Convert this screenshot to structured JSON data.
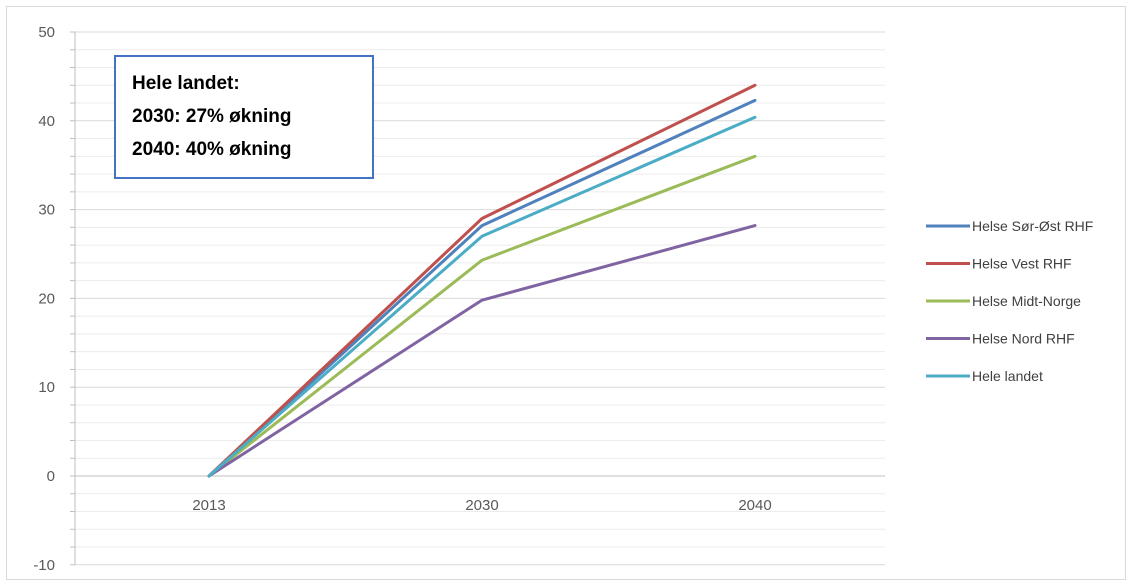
{
  "chart_data": {
    "type": "line",
    "categories": [
      "2013",
      "2030",
      "2040"
    ],
    "series": [
      {
        "name": "Helse Sør-Øst RHF",
        "color": "#4f81bd",
        "values": [
          0,
          28.2,
          42.3
        ]
      },
      {
        "name": "Helse Vest RHF",
        "color": "#c0504d",
        "values": [
          0,
          29.0,
          44.0
        ]
      },
      {
        "name": "Helse Midt-Norge",
        "color": "#9bbb59",
        "values": [
          0,
          24.3,
          36.0
        ]
      },
      {
        "name": "Helse Nord RHF",
        "color": "#8064a2",
        "values": [
          0,
          19.8,
          28.2
        ]
      },
      {
        "name": "Hele landet",
        "color": "#4bacc6",
        "values": [
          0,
          27.0,
          40.4
        ]
      }
    ],
    "ylim": [
      -10,
      50
    ],
    "yticks": [
      -10,
      0,
      10,
      20,
      30,
      40,
      50
    ],
    "grid": true,
    "legend_position": "right",
    "annotation": {
      "lines": [
        "Hele landet:",
        "2030: 27% økning",
        "2040: 40% økning"
      ],
      "border_color": "#4472c4"
    }
  }
}
